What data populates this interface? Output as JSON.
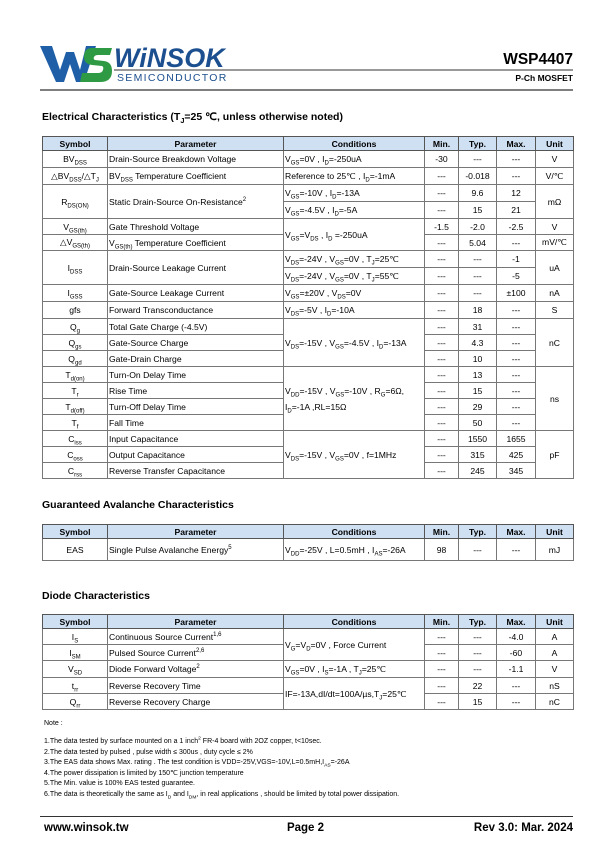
{
  "header": {
    "logo_name": "WiNSOK",
    "logo_sub": "SEMICONDUCTOR",
    "part": "WSP4407",
    "type": "P-Ch MOSFET"
  },
  "electrical": {
    "title": [
      "Electrical Characteristics (T",
      {
        "sub": "J"
      },
      "=25 ℃, unless otherwise noted)"
    ],
    "header": [
      "Symbol",
      "Parameter",
      "Conditions",
      "Min.",
      "Typ.",
      "Max.",
      "Unit"
    ],
    "rows": [
      [
        [
          "BV",
          {
            "sub": "DSS"
          }
        ],
        "Drain-Source Breakdown Voltage",
        [
          "V",
          {
            "sub": "GS"
          },
          "=0V , I",
          {
            "sub": "D"
          },
          "=-250uA"
        ],
        "-30",
        "---",
        "---",
        "V"
      ],
      [
        [
          "△BV",
          {
            "sub": "DSS"
          },
          "/△T",
          {
            "sub": "J"
          }
        ],
        [
          "BV",
          {
            "sub": "DSS"
          },
          " Temperature Coefficient"
        ],
        [
          "Reference to 25℃ , I",
          {
            "sub": "D"
          },
          "=-1mA"
        ],
        "---",
        "-0.018",
        "---",
        "V/℃"
      ],
      [
        [
          "R",
          {
            "sub": "DS(ON)"
          }
        ],
        [
          "Static Drain-Source On-Resistance",
          {
            "sup": "2"
          }
        ],
        [
          "V",
          {
            "sub": "GS"
          },
          "=-10V , I",
          {
            "sub": "D"
          },
          "=-13A"
        ],
        "---",
        "9.6",
        "12",
        "mΩ"
      ],
      [
        [
          "V",
          {
            "sub": "GS"
          },
          "=-4.5V , I",
          {
            "sub": "D"
          },
          "=-5A"
        ],
        "---",
        "15",
        "21"
      ],
      [
        [
          "V",
          {
            "sub": "GS(th)"
          }
        ],
        "Gate Threshold Voltage",
        [
          "V",
          {
            "sub": "GS"
          },
          "=V",
          {
            "sub": "DS"
          },
          " , I",
          {
            "sub": "D"
          },
          " =-250uA"
        ],
        "-1.5",
        "-2.0",
        "-2.5",
        "V"
      ],
      [
        [
          "△V",
          {
            "sub": "GS(th)"
          }
        ],
        [
          "V",
          {
            "sub": "GS(th)"
          },
          " Temperature Coefficient"
        ],
        "---",
        "5.04",
        "---",
        "mV/℃"
      ],
      [
        [
          "I",
          {
            "sub": "DSS"
          }
        ],
        "Drain-Source Leakage Current",
        [
          "V",
          {
            "sub": "DS"
          },
          "=-24V , V",
          {
            "sub": "GS"
          },
          "=0V , T",
          {
            "sub": "J"
          },
          "=25℃"
        ],
        "---",
        "---",
        "-1",
        "uA"
      ],
      [
        [
          "V",
          {
            "sub": "DS"
          },
          "=-24V , V",
          {
            "sub": "GS"
          },
          "=0V , T",
          {
            "sub": "J"
          },
          "=55℃"
        ],
        "---",
        "---",
        "-5"
      ],
      [
        [
          "I",
          {
            "sub": "GSS"
          }
        ],
        "Gate-Source Leakage Current",
        [
          "V",
          {
            "sub": "GS"
          },
          "=±20V , V",
          {
            "sub": "DS"
          },
          "=0V"
        ],
        "---",
        "---",
        "±100",
        "nA"
      ],
      [
        "gfs",
        "Forward Transconductance",
        [
          "V",
          {
            "sub": "DS"
          },
          "=-5V , I",
          {
            "sub": "D"
          },
          "=-10A"
        ],
        "---",
        "18",
        "---",
        "S"
      ],
      [
        [
          "Q",
          {
            "sub": "g"
          }
        ],
        "Total Gate Charge (-4.5V)",
        [
          "V",
          {
            "sub": "DS"
          },
          "=-15V , V",
          {
            "sub": "GS"
          },
          "=-4.5V , I",
          {
            "sub": "D"
          },
          "=-13A"
        ],
        "---",
        "31",
        "---",
        "nC"
      ],
      [
        [
          "Q",
          {
            "sub": "gs"
          }
        ],
        "Gate-Source Charge",
        "---",
        "4.3",
        "---"
      ],
      [
        [
          "Q",
          {
            "sub": "gd"
          }
        ],
        "Gate-Drain Charge",
        "---",
        "10",
        "---"
      ],
      [
        [
          "T",
          {
            "sub": "d(on)"
          }
        ],
        "Turn-On Delay Time",
        [
          "V",
          {
            "sub": "DD"
          },
          "=-15V , V",
          {
            "sub": "GS"
          },
          "=-10V , R",
          {
            "sub": "G"
          },
          "=6Ω, I",
          {
            "sub": "D"
          },
          "=-1A ,RL=15Ω"
        ],
        "---",
        "13",
        "---",
        "ns"
      ],
      [
        [
          "T",
          {
            "sub": "r"
          }
        ],
        "Rise Time",
        "---",
        "15",
        "---"
      ],
      [
        [
          "T",
          {
            "sub": "d(off)"
          }
        ],
        "Turn-Off Delay Time",
        "---",
        "29",
        "---"
      ],
      [
        [
          "T",
          {
            "sub": "f"
          }
        ],
        "Fall Time",
        "---",
        "50",
        "---"
      ],
      [
        [
          "C",
          {
            "sub": "iss"
          }
        ],
        "Input Capacitance",
        [
          "V",
          {
            "sub": "DS"
          },
          "=-15V , V",
          {
            "sub": "GS"
          },
          "=0V , f=1MHz"
        ],
        "---",
        "1550",
        "1655",
        "pF"
      ],
      [
        [
          "C",
          {
            "sub": "oss"
          }
        ],
        "Output Capacitance",
        "---",
        "315",
        "425"
      ],
      [
        [
          "C",
          {
            "sub": "rss"
          }
        ],
        "Reverse Transfer Capacitance",
        "---",
        "245",
        "345"
      ]
    ]
  },
  "avalanche": {
    "title": "Guaranteed Avalanche Characteristics",
    "header": [
      "Symbol",
      "Parameter",
      "Conditions",
      "Min.",
      "Typ.",
      "Max.",
      "Unit"
    ],
    "rows": [
      [
        "EAS",
        [
          "Single Pulse Avalanche Energy",
          {
            "sup": "5"
          }
        ],
        [
          "V",
          {
            "sub": "DD"
          },
          "=-25V , L=0.5mH , I",
          {
            "sub": "AS"
          },
          "=-26A"
        ],
        "98",
        "---",
        "---",
        "mJ"
      ]
    ]
  },
  "diode": {
    "title": "Diode Characteristics",
    "header": [
      "Symbol",
      "Parameter",
      "Conditions",
      "Min.",
      "Typ.",
      "Max.",
      "Unit"
    ],
    "rows": [
      [
        [
          "I",
          {
            "sub": "S"
          }
        ],
        [
          "Continuous Source Current",
          {
            "sup": "1,6"
          }
        ],
        [
          "V",
          {
            "sub": "G"
          },
          "=V",
          {
            "sub": "D"
          },
          "=0V , Force Current"
        ],
        "---",
        "---",
        "-4.0",
        "A"
      ],
      [
        [
          "I",
          {
            "sub": "SM"
          }
        ],
        [
          "Pulsed Source Current",
          {
            "sup": "2,6"
          }
        ],
        "---",
        "---",
        "-60",
        "A"
      ],
      [
        [
          "V",
          {
            "sub": "SD"
          }
        ],
        [
          "Diode Forward Voltage",
          {
            "sup": "2"
          }
        ],
        [
          "V",
          {
            "sub": "GS"
          },
          "=0V , I",
          {
            "sub": "S"
          },
          "=-1A , T",
          {
            "sub": "J"
          },
          "=25℃"
        ],
        "---",
        "---",
        "-1.1",
        "V"
      ],
      [
        [
          "t",
          {
            "sub": "rr"
          }
        ],
        "Reverse Recovery Time",
        [
          "IF=-13A,dI/dt=100A/µs,T",
          {
            "sub": "J"
          },
          "=25℃"
        ],
        "---",
        "22",
        "---",
        "nS"
      ],
      [
        [
          "Q",
          {
            "sub": "rr"
          }
        ],
        "Reverse Recovery Charge",
        "---",
        "15",
        "---",
        "nC"
      ]
    ]
  },
  "notes": {
    "title": "Note :",
    "items": [
      [
        "1.The data tested by surface mounted on a 1 inch",
        {
          "sup": "2"
        },
        " FR-4 board with 2OZ copper, t<10sec."
      ],
      "2.The data tested by pulsed , pulse width ≤ 300us , duty cycle ≤ 2%",
      [
        "3.The EAS data shows Max. rating . The test condition is VDD=-25V,VGS=-10V,L=0.5mH,I",
        {
          "sub": "AS"
        },
        "=-26A"
      ],
      "4.The power dissipation is limited by 150℃ junction temperature",
      "5.The Min. value is 100% EAS tested guarantee.",
      [
        "6.The data is theoretically the same as I",
        {
          "sub": "D"
        },
        " and I",
        {
          "sub": "DM"
        },
        ", in real applications , should be limited by total power dissipation."
      ]
    ]
  },
  "footer": {
    "website": "www.winsok.tw",
    "page": "Page 2",
    "revision": "Rev 3.0: Mar. 2024"
  }
}
